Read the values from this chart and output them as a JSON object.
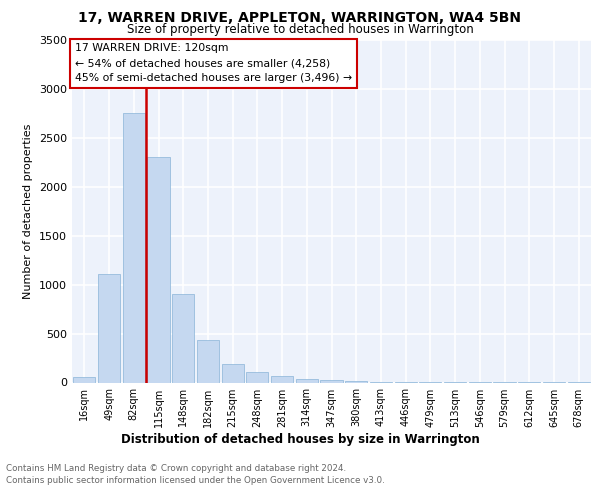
{
  "title": "17, WARREN DRIVE, APPLETON, WARRINGTON, WA4 5BN",
  "subtitle": "Size of property relative to detached houses in Warrington",
  "xlabel": "Distribution of detached houses by size in Warrington",
  "ylabel": "Number of detached properties",
  "bar_color": "#c5d8f0",
  "bar_edge_color": "#8ab4d8",
  "background_color": "#edf2fb",
  "grid_color": "#ffffff",
  "categories": [
    "16sqm",
    "49sqm",
    "82sqm",
    "115sqm",
    "148sqm",
    "182sqm",
    "215sqm",
    "248sqm",
    "281sqm",
    "314sqm",
    "347sqm",
    "380sqm",
    "413sqm",
    "446sqm",
    "479sqm",
    "513sqm",
    "546sqm",
    "579sqm",
    "612sqm",
    "645sqm",
    "678sqm"
  ],
  "values": [
    55,
    1110,
    2750,
    2300,
    900,
    430,
    185,
    110,
    65,
    40,
    22,
    12,
    8,
    5,
    4,
    3,
    2,
    2,
    1,
    1,
    1
  ],
  "vline_color": "#cc0000",
  "annotation_text1": "17 WARREN DRIVE: 120sqm",
  "annotation_text2": "← 54% of detached houses are smaller (4,258)",
  "annotation_text3": "45% of semi-detached houses are larger (3,496) →",
  "annotation_box_facecolor": "#ffffff",
  "annotation_box_edgecolor": "#cc0000",
  "ylim": [
    0,
    3500
  ],
  "yticks": [
    0,
    500,
    1000,
    1500,
    2000,
    2500,
    3000,
    3500
  ],
  "footer_line1": "Contains HM Land Registry data © Crown copyright and database right 2024.",
  "footer_line2": "Contains public sector information licensed under the Open Government Licence v3.0."
}
